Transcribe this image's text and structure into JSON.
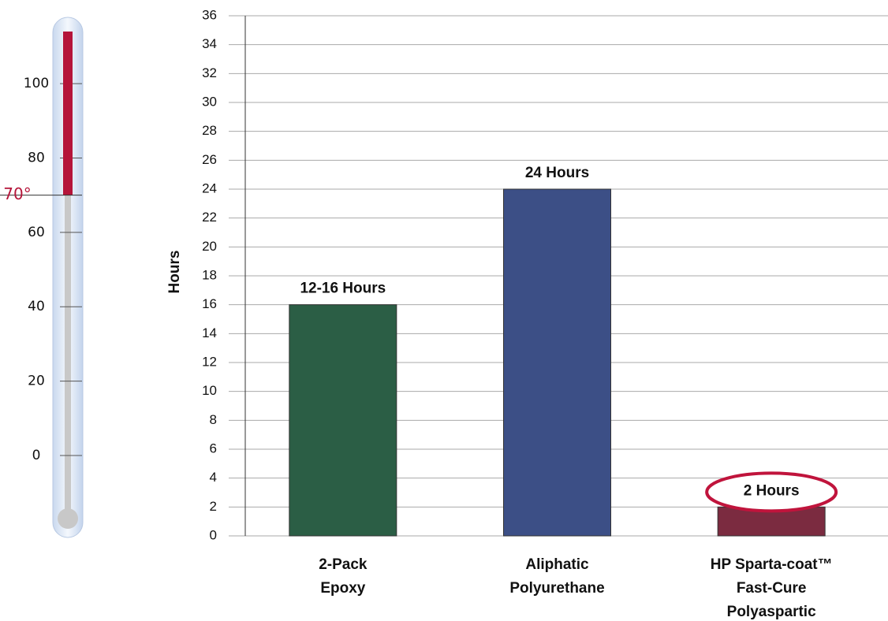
{
  "chart_data": [
    {
      "type": "thermometer",
      "ylim": [
        -14,
        114
      ],
      "yticks": [
        0,
        20,
        40,
        60,
        80,
        100
      ],
      "value": 70,
      "value_label": "70°",
      "color": "#b5153a"
    },
    {
      "type": "bar",
      "ylabel": "Hours",
      "categories": [
        [
          "2-Pack",
          "Epoxy"
        ],
        [
          "Aliphatic",
          "Polyurethane"
        ],
        [
          "HP Sparta-coat™",
          "Fast-Cure",
          "Polyaspartic"
        ]
      ],
      "values": [
        16,
        24,
        2
      ],
      "value_labels": [
        "12-16 Hours",
        "24 Hours",
        "2 Hours"
      ],
      "colors": [
        "#2b5e45",
        "#3c4f86",
        "#7b2b40"
      ],
      "ylim": [
        0,
        36
      ],
      "yticks": [
        0,
        2,
        4,
        6,
        8,
        10,
        12,
        14,
        16,
        18,
        20,
        22,
        24,
        26,
        28,
        30,
        32,
        34,
        36
      ],
      "grid": true
    }
  ]
}
